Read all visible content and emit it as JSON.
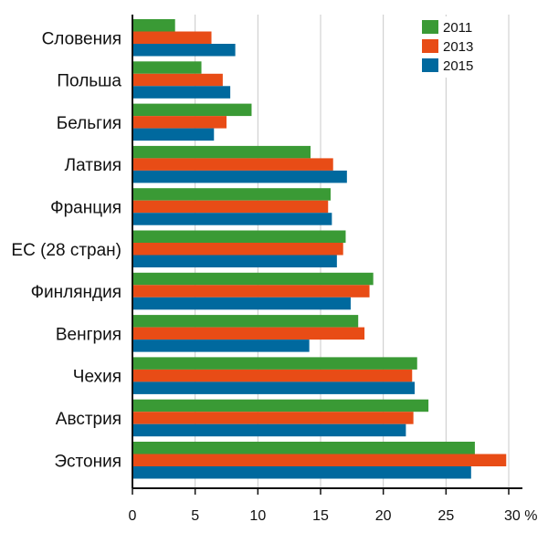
{
  "chart_data": {
    "type": "bar",
    "orientation": "horizontal",
    "categories": [
      "Словения",
      "Польша",
      "Бельгия",
      "Латвия",
      "Франция",
      "ЕС (28 стран)",
      "Финляндия",
      "Венгрия",
      "Чехия",
      "Австрия",
      "Эстония"
    ],
    "series": [
      {
        "name": "2011",
        "color": "#3a9a35",
        "values": [
          3.4,
          5.5,
          9.5,
          14.2,
          15.8,
          17.0,
          19.2,
          18.0,
          22.7,
          23.6,
          27.3
        ]
      },
      {
        "name": "2013",
        "color": "#e84c16",
        "values": [
          6.3,
          7.2,
          7.5,
          16.0,
          15.6,
          16.8,
          18.9,
          18.5,
          22.3,
          22.4,
          29.8
        ]
      },
      {
        "name": "2015",
        "color": "#00699e",
        "values": [
          8.2,
          7.8,
          6.5,
          17.1,
          15.9,
          16.3,
          17.4,
          14.1,
          22.5,
          21.8,
          27.0
        ]
      }
    ],
    "ticks": [
      "0",
      "5",
      "10",
      "15",
      "20",
      "25",
      "30 %"
    ],
    "tick_values": [
      0,
      5,
      10,
      15,
      20,
      25,
      30
    ],
    "xlim": [
      0,
      30
    ],
    "grid": true,
    "legend_position": "top-right"
  }
}
